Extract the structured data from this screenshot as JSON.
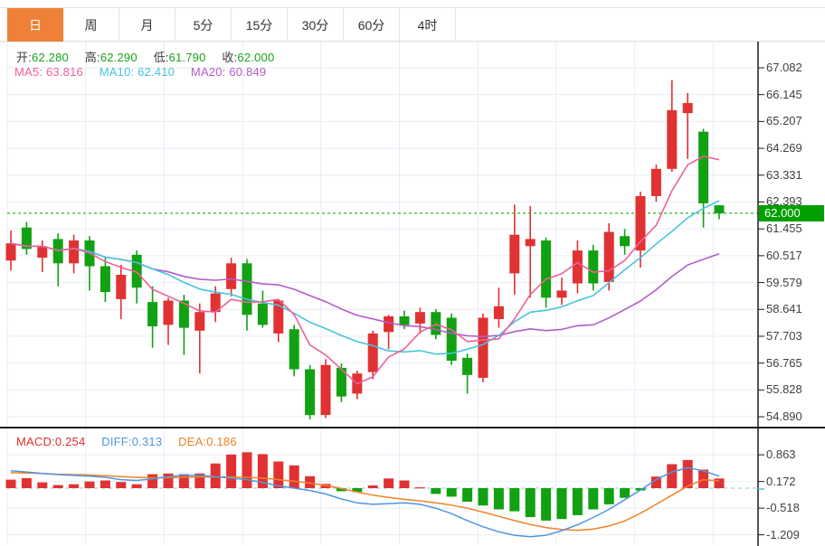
{
  "tabs": {
    "active_index": 0,
    "items": [
      {
        "label": "日",
        "name": "day"
      },
      {
        "label": "周",
        "name": "week"
      },
      {
        "label": "月",
        "name": "month"
      },
      {
        "label": "5分",
        "name": "5min"
      },
      {
        "label": "15分",
        "name": "15min"
      },
      {
        "label": "30分",
        "name": "30min"
      },
      {
        "label": "60分",
        "name": "60min"
      },
      {
        "label": "4时",
        "name": "4hour"
      }
    ]
  },
  "price_panel": {
    "ohlc": {
      "open_label": "开:",
      "open": "62.280",
      "high_label": "高:",
      "high": "62.290",
      "low_label": "低:",
      "low": "61.790",
      "close_label": "收:",
      "close": "62.000"
    },
    "ma_readout": {
      "ma5_label": "MA5:",
      "ma5": "63.816",
      "ma10_label": "MA10:",
      "ma10": "62.410",
      "ma20_label": "MA20:",
      "ma20": "60.849"
    },
    "current_price_badge": "62.000"
  },
  "macd_panel": {
    "readout": {
      "macd_label": "MACD:",
      "macd": "0.254",
      "diff_label": "DIFF:",
      "diff": "0.313",
      "dea_label": "DEA:",
      "dea": "0.186"
    }
  },
  "colors": {
    "up": "#e03232",
    "down": "#12a112",
    "ma5": "#f0609a",
    "ma10": "#47c4de",
    "ma20": "#b45cc8",
    "value_green": "#1aa31a",
    "macd_red": "#e03030",
    "diff_blue": "#4f96e0",
    "dea_orange": "#f08228",
    "tab_orange": "#ef8037",
    "grid": "#e8edf6",
    "axis_line": "#1c1c1c",
    "axis_text": "#404040",
    "price_dash": "#00a000",
    "badge_bg": "#00a000",
    "zero_dash": "#8fc4e0"
  },
  "chart_data": {
    "type": "candlestick+macd",
    "note": "Chinese color convention: red = up candle, green = down candle",
    "price_axis": {
      "labels": [
        "67.082",
        "66.145",
        "65.207",
        "64.269",
        "63.331",
        "62.393",
        "61.455",
        "60.517",
        "59.579",
        "58.641",
        "57.703",
        "56.765",
        "55.828",
        "54.890"
      ],
      "min": 54.89,
      "max": 67.082,
      "current_price": 62.0
    },
    "ma_periods": [
      5,
      10,
      20
    ],
    "candles_ohlc": [
      [
        60.35,
        61.4,
        60.0,
        60.95
      ],
      [
        61.5,
        61.7,
        60.55,
        60.75
      ],
      [
        60.45,
        61.05,
        59.95,
        60.85
      ],
      [
        61.1,
        61.3,
        59.45,
        60.25
      ],
      [
        60.25,
        61.25,
        59.9,
        61.05
      ],
      [
        61.05,
        61.2,
        59.3,
        60.15
      ],
      [
        60.15,
        60.45,
        58.9,
        59.25
      ],
      [
        59.0,
        60.2,
        58.3,
        59.85
      ],
      [
        60.55,
        60.7,
        58.85,
        59.4
      ],
      [
        58.9,
        59.45,
        57.3,
        58.05
      ],
      [
        58.1,
        59.05,
        57.4,
        58.95
      ],
      [
        58.95,
        59.15,
        57.05,
        58.0
      ],
      [
        57.9,
        58.85,
        56.4,
        58.55
      ],
      [
        58.55,
        59.45,
        58.2,
        59.2
      ],
      [
        59.35,
        60.45,
        59.1,
        60.25
      ],
      [
        60.25,
        60.4,
        57.9,
        58.45
      ],
      [
        58.85,
        59.3,
        58.0,
        58.1
      ],
      [
        57.8,
        59.0,
        57.5,
        58.95
      ],
      [
        57.95,
        58.1,
        56.3,
        56.55
      ],
      [
        56.55,
        56.7,
        54.8,
        54.95
      ],
      [
        54.95,
        56.9,
        54.85,
        56.7
      ],
      [
        56.6,
        56.75,
        55.4,
        55.6
      ],
      [
        55.7,
        56.5,
        55.5,
        56.4
      ],
      [
        56.45,
        57.9,
        56.2,
        57.8
      ],
      [
        57.85,
        58.45,
        57.25,
        58.4
      ],
      [
        58.4,
        58.6,
        57.95,
        58.1
      ],
      [
        58.15,
        58.7,
        57.8,
        58.55
      ],
      [
        58.55,
        58.65,
        57.6,
        57.75
      ],
      [
        58.35,
        58.5,
        56.7,
        56.85
      ],
      [
        56.95,
        57.1,
        55.7,
        56.35
      ],
      [
        56.25,
        58.5,
        56.1,
        58.35
      ],
      [
        58.3,
        59.4,
        58.0,
        58.75
      ],
      [
        59.9,
        62.3,
        59.15,
        61.25
      ],
      [
        60.85,
        62.25,
        59.05,
        61.1
      ],
      [
        61.05,
        61.15,
        58.7,
        59.05
      ],
      [
        59.05,
        59.75,
        58.8,
        59.3
      ],
      [
        59.55,
        61.05,
        59.2,
        60.7
      ],
      [
        60.7,
        60.9,
        59.3,
        59.55
      ],
      [
        59.6,
        61.65,
        59.3,
        61.35
      ],
      [
        61.2,
        61.45,
        60.55,
        60.85
      ],
      [
        60.7,
        62.75,
        60.1,
        62.6
      ],
      [
        62.6,
        63.7,
        62.4,
        63.55
      ],
      [
        63.55,
        66.65,
        63.45,
        65.6
      ],
      [
        65.5,
        66.2,
        63.9,
        65.85
      ],
      [
        64.85,
        64.95,
        61.5,
        62.35
      ],
      [
        62.28,
        62.29,
        61.79,
        62.0
      ]
    ],
    "macd": {
      "axis_labels": [
        "0.863",
        "0.172",
        "-0.518",
        "-1.209"
      ],
      "histogram": [
        0.22,
        0.26,
        0.15,
        0.08,
        0.1,
        0.17,
        0.2,
        0.16,
        0.1,
        0.36,
        0.38,
        0.36,
        0.38,
        0.64,
        0.87,
        0.93,
        0.88,
        0.69,
        0.59,
        0.31,
        0.11,
        -0.08,
        -0.1,
        0.07,
        0.25,
        0.2,
        0.02,
        -0.15,
        -0.22,
        -0.35,
        -0.45,
        -0.55,
        -0.6,
        -0.75,
        -0.84,
        -0.8,
        -0.7,
        -0.55,
        -0.42,
        -0.25,
        -0.06,
        0.3,
        0.62,
        0.73,
        0.48,
        0.25
      ],
      "diff": [
        0.45,
        0.42,
        0.38,
        0.35,
        0.33,
        0.31,
        0.28,
        0.22,
        0.2,
        0.24,
        0.3,
        0.33,
        0.33,
        0.3,
        0.26,
        0.22,
        0.15,
        0.06,
        0.0,
        -0.06,
        -0.15,
        -0.28,
        -0.38,
        -0.42,
        -0.4,
        -0.38,
        -0.42,
        -0.52,
        -0.66,
        -0.84,
        -1.0,
        -1.13,
        -1.22,
        -1.26,
        -1.22,
        -1.1,
        -0.95,
        -0.76,
        -0.55,
        -0.3,
        -0.05,
        0.22,
        0.42,
        0.53,
        0.45,
        0.31
      ],
      "dea": [
        0.4,
        0.39,
        0.38,
        0.36,
        0.35,
        0.34,
        0.32,
        0.3,
        0.28,
        0.27,
        0.27,
        0.28,
        0.29,
        0.29,
        0.29,
        0.28,
        0.26,
        0.22,
        0.18,
        0.13,
        0.07,
        -0.01,
        -0.1,
        -0.18,
        -0.24,
        -0.29,
        -0.33,
        -0.38,
        -0.44,
        -0.52,
        -0.62,
        -0.73,
        -0.84,
        -0.94,
        -1.02,
        -1.07,
        -1.09,
        -1.06,
        -0.98,
        -0.85,
        -0.65,
        -0.42,
        -0.18,
        0.05,
        0.22,
        0.19
      ]
    }
  }
}
